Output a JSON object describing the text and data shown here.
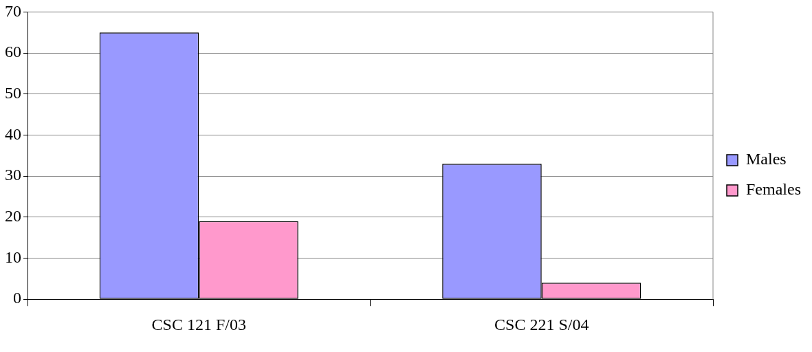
{
  "chart_data": {
    "type": "bar",
    "categories": [
      "CSC 121 F/03",
      "CSC 221 S/04"
    ],
    "series": [
      {
        "name": "Males",
        "color": "#9999ff",
        "values": [
          65,
          33
        ]
      },
      {
        "name": "Females",
        "color": "#ff99cc",
        "values": [
          19,
          4
        ]
      }
    ],
    "ylim": [
      0,
      70
    ],
    "yticks": [
      0,
      10,
      20,
      30,
      40,
      50,
      60,
      70
    ],
    "grid": "y",
    "legend": "right"
  }
}
